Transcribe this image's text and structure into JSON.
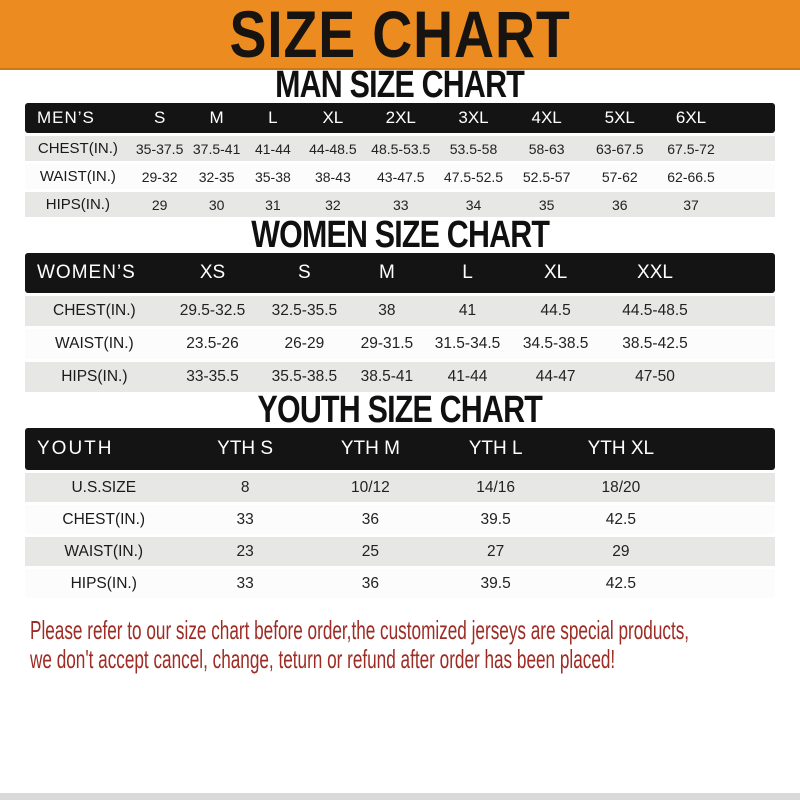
{
  "banner": {
    "title": "SIZE CHART"
  },
  "tables": [
    {
      "heading": "MAN SIZE CHART",
      "header": {
        "label": "MEN’S",
        "sizes": [
          "S",
          "M",
          "L",
          "XL",
          "2XL",
          "3XL",
          "4XL",
          "5XL",
          "6XL"
        ]
      },
      "rows": [
        {
          "label": "CHEST(IN.)",
          "values": [
            "35-37.5",
            "37.5-41",
            "41-44",
            "44-48.5",
            "48.5-53.5",
            "53.5-58",
            "58-63",
            "63-67.5",
            "67.5-72"
          ]
        },
        {
          "label": "WAIST(IN.)",
          "values": [
            "29-32",
            "32-35",
            "35-38",
            "38-43",
            "43-47.5",
            "47.5-52.5",
            "52.5-57",
            "57-62",
            "62-66.5"
          ]
        },
        {
          "label": "HIPS(IN.)",
          "values": [
            "29",
            "30",
            "31",
            "32",
            "33",
            "34",
            "35",
            "36",
            "37"
          ]
        }
      ]
    },
    {
      "heading": "WOMEN SIZE CHART",
      "header": {
        "label": "WOMEN’S",
        "sizes": [
          "XS",
          "S",
          "M",
          "L",
          "XL",
          "XXL"
        ]
      },
      "rows": [
        {
          "label": "CHEST(IN.)",
          "values": [
            "29.5-32.5",
            "32.5-35.5",
            "38",
            "41",
            "44.5",
            "44.5-48.5"
          ]
        },
        {
          "label": "WAIST(IN.)",
          "values": [
            "23.5-26",
            "26-29",
            "29-31.5",
            "31.5-34.5",
            "34.5-38.5",
            "38.5-42.5"
          ]
        },
        {
          "label": "HIPS(IN.)",
          "values": [
            "33-35.5",
            "35.5-38.5",
            "38.5-41",
            "41-44",
            "44-47",
            "47-50"
          ]
        }
      ]
    },
    {
      "heading": "YOUTH SIZE CHART",
      "header": {
        "label": "YOUTH",
        "sizes": [
          "YTH S",
          "YTH M",
          "YTH L",
          "YTH XL"
        ]
      },
      "rows": [
        {
          "label": "U.S.SIZE",
          "values": [
            "8",
            "10/12",
            "14/16",
            "18/20"
          ]
        },
        {
          "label": "CHEST(IN.)",
          "values": [
            "33",
            "36",
            "39.5",
            "42.5"
          ]
        },
        {
          "label": "WAIST(IN.)",
          "values": [
            "23",
            "25",
            "27",
            "29"
          ]
        },
        {
          "label": "HIPS(IN.)",
          "values": [
            "33",
            "36",
            "39.5",
            "42.5"
          ]
        }
      ]
    }
  ],
  "footer": {
    "line1": "Please refer to our size chart before order,the customized jerseys are special products,",
    "line2": "we don't accept cancel, change, teturn or refund after order has been placed!"
  },
  "colors": {
    "banner_bg": "#EC8B20",
    "banner_text": "#171310",
    "bar_bg": "#141414",
    "bar_text": "#FFFFFF",
    "row_gray": "#E7E7E6",
    "row_white": "#FCFCFC",
    "note_red": "#9E2C24",
    "bottom_strip": "#D9D9D9"
  }
}
